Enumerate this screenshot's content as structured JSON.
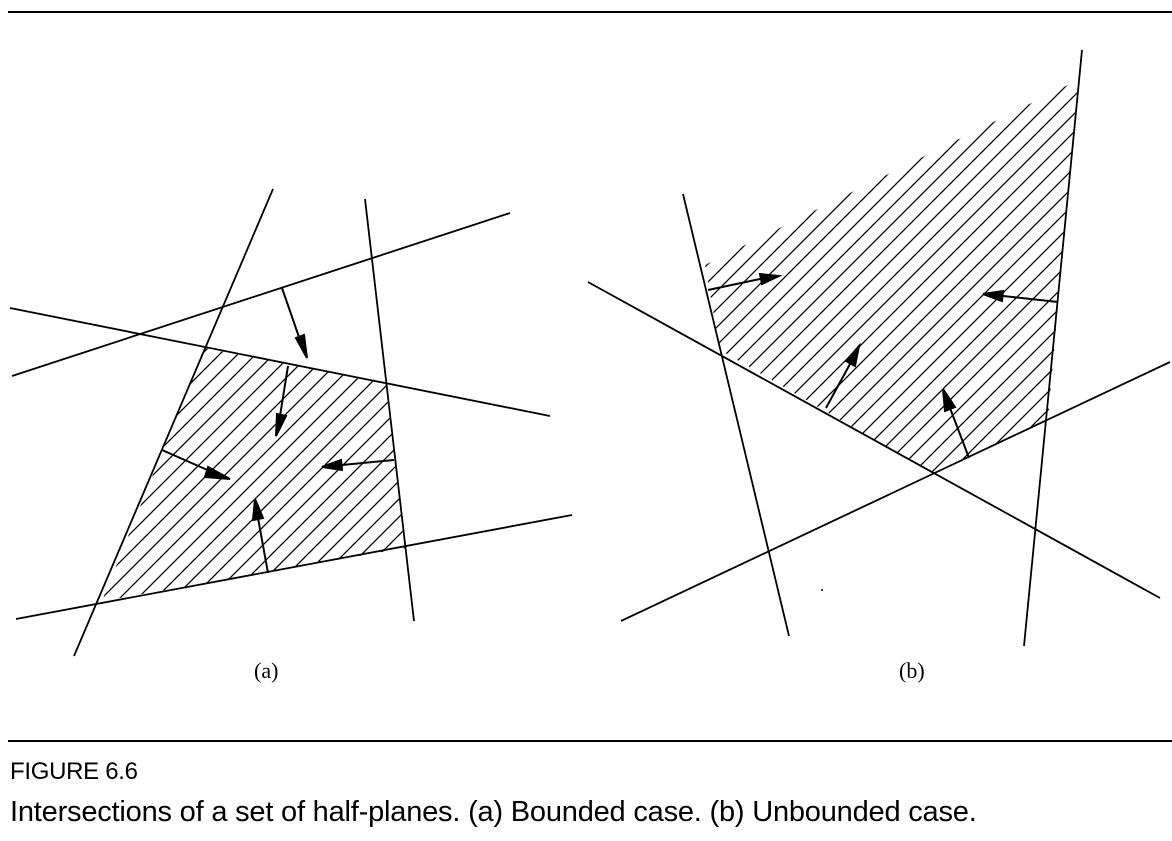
{
  "figure": {
    "panel_a_label": "(a)",
    "panel_b_label": "(b)",
    "number": "FIGURE 6.6",
    "caption": "Intersections of a set of half-planes. (a) Bounded case. (b) Unbounded case."
  },
  "colors": {
    "ink": "#000000",
    "paper": "#ffffff"
  }
}
